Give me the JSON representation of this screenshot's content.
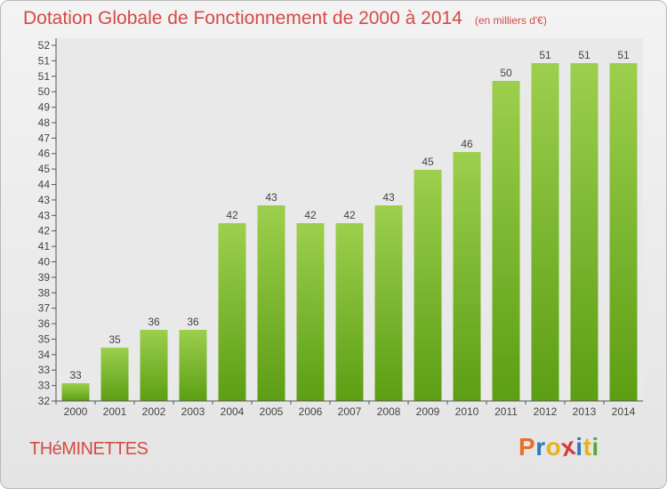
{
  "chart_data": {
    "type": "bar",
    "title": "Dotation Globale de Fonctionnement de 2000 à 2014",
    "subtitle": "(en milliers d'€)",
    "categories": [
      "2000",
      "2001",
      "2002",
      "2003",
      "2004",
      "2005",
      "2006",
      "2007",
      "2008",
      "2009",
      "2010",
      "2011",
      "2012",
      "2013",
      "2014"
    ],
    "values": [
      33,
      35,
      36,
      36,
      42,
      43,
      42,
      42,
      43,
      45,
      46,
      50,
      51,
      51,
      51
    ],
    "data_labels": [
      "33",
      "35",
      "36",
      "36",
      "42",
      "43",
      "42",
      "42",
      "43",
      "45",
      "46",
      "50",
      "51",
      "51",
      "51"
    ],
    "y_ticks": [
      "32",
      "33",
      "33",
      "34",
      "35",
      "36",
      "37",
      "38",
      "39",
      "40",
      "41",
      "42",
      "43",
      "43",
      "44",
      "45",
      "46",
      "47",
      "48",
      "49",
      "50",
      "51",
      "51",
      "52"
    ],
    "ylim": [
      32,
      52
    ],
    "grid": false,
    "colors": {
      "bar_top": "#9ccf4d",
      "bar_bottom": "#5c9e14",
      "text": "#d44a45"
    }
  },
  "footer": {
    "town": "THéMINETTES",
    "brand_letters": [
      "P",
      "r",
      "o",
      "x",
      "i",
      "t",
      "i"
    ],
    "brand_colors": [
      "#e3702a",
      "#2b78c2",
      "#e6b21d",
      "#d23c3c",
      "#2b78c2",
      "#e6b21d",
      "#5aa832"
    ]
  }
}
